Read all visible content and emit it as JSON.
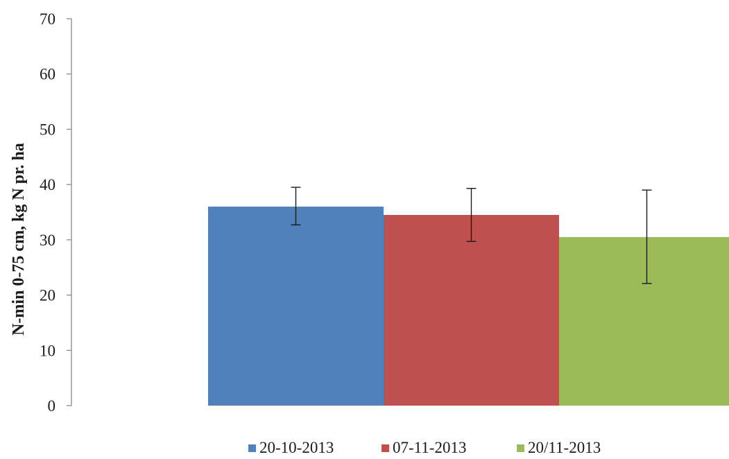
{
  "chart_data": {
    "type": "bar",
    "title": "",
    "xlabel": "",
    "ylabel": "N-min 0-75 cm, kg N pr. ha",
    "ylim": [
      0,
      70
    ],
    "yticks": [
      0,
      10,
      20,
      30,
      40,
      50,
      60,
      70
    ],
    "grid": false,
    "legend_position": "bottom",
    "series": [
      {
        "name": "20-10-2013",
        "value": 36,
        "error_low": 32.7,
        "error_high": 39.5,
        "color": "#4f81bd"
      },
      {
        "name": "07-11-2013",
        "value": 34.5,
        "error_low": 29.7,
        "error_high": 39.3,
        "color": "#c0504d"
      },
      {
        "name": "20/11-2013",
        "value": 30.5,
        "error_low": 22.1,
        "error_high": 39,
        "color": "#9bbb59"
      }
    ]
  }
}
